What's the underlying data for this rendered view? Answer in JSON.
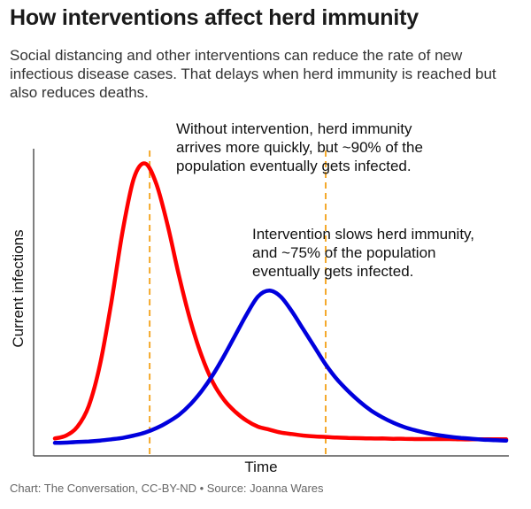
{
  "title": "How interventions affect herd immunity",
  "subtitle": "Social distancing and other interventions can reduce the rate of new infectious disease cases. That delays when herd immunity is reached but also reduces deaths.",
  "source": "Chart: The Conversation, CC-BY-ND • Source: Joanna Wares",
  "colors": {
    "no_intervention": "#ff0000",
    "intervention": "#0000dd",
    "marker": "#f4a92c",
    "axis": "#555555"
  },
  "chart_data": {
    "type": "line",
    "xlabel": "Time",
    "ylabel": "Current infections",
    "xlim": [
      0,
      10
    ],
    "ylim": [
      0,
      1
    ],
    "grid": false,
    "x": [
      0,
      0.25,
      0.5,
      0.75,
      1,
      1.25,
      1.5,
      1.75,
      2,
      2.25,
      2.5,
      2.75,
      3,
      3.25,
      3.5,
      3.75,
      4,
      4.25,
      4.5,
      4.75,
      5,
      5.25,
      5.5,
      5.75,
      6,
      6.25,
      6.5,
      6.75,
      7,
      7.25,
      7.5,
      7.75,
      8,
      8.25,
      8.5,
      8.75,
      9,
      9.25,
      9.5,
      9.75,
      10
    ],
    "series": [
      {
        "key": "no_intervention",
        "values": [
          0.02,
          0.03,
          0.06,
          0.13,
          0.27,
          0.48,
          0.72,
          0.9,
          0.95,
          0.88,
          0.74,
          0.57,
          0.42,
          0.3,
          0.21,
          0.15,
          0.11,
          0.08,
          0.06,
          0.05,
          0.04,
          0.035,
          0.03,
          0.027,
          0.025,
          0.023,
          0.022,
          0.021,
          0.02,
          0.02,
          0.019,
          0.019,
          0.018,
          0.018,
          0.018,
          0.018,
          0.017,
          0.017,
          0.017,
          0.017,
          0.017
        ]
      },
      {
        "key": "intervention",
        "values": [
          0.005,
          0.006,
          0.008,
          0.01,
          0.013,
          0.017,
          0.022,
          0.03,
          0.04,
          0.055,
          0.075,
          0.1,
          0.135,
          0.18,
          0.235,
          0.3,
          0.37,
          0.44,
          0.5,
          0.52,
          0.5,
          0.45,
          0.39,
          0.33,
          0.27,
          0.22,
          0.18,
          0.145,
          0.115,
          0.092,
          0.073,
          0.058,
          0.047,
          0.038,
          0.031,
          0.026,
          0.022,
          0.019,
          0.016,
          0.014,
          0.013
        ]
      }
    ],
    "markers": [
      {
        "key": "no_intervention",
        "x": 2.1
      },
      {
        "key": "intervention",
        "x": 6.0
      }
    ],
    "annotations": [
      {
        "lines": [
          "Without intervention, herd immunity",
          "arrives more quickly, but ~90% of the",
          "population eventually gets infected."
        ]
      },
      {
        "lines": [
          "Intervention slows herd immunity,",
          "and ~75% of the population",
          "eventually gets infected."
        ]
      }
    ]
  }
}
